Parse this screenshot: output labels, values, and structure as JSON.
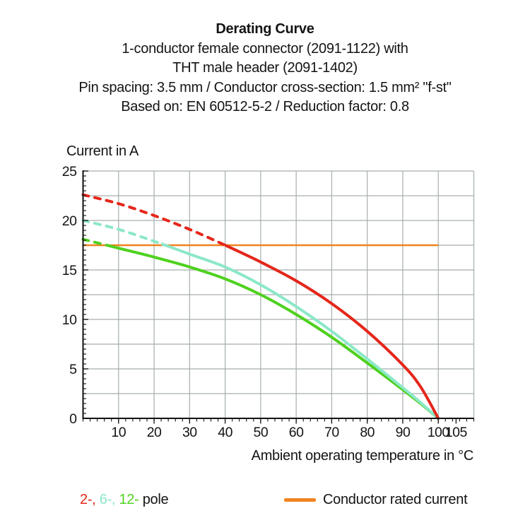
{
  "header": {
    "title": "Derating Curve",
    "lines": [
      "1-conductor female connector (2091-1122) with",
      "THT male header (2091-1402)",
      "Pin spacing: 3.5 mm / Conductor cross-section: 1.5 mm² \"f-st\"",
      "Based on: EN 60512-5-2 / Reduction factor: 0.8"
    ]
  },
  "chart_data": {
    "type": "line",
    "title": "Derating Curve",
    "xlabel": "Ambient operating temperature in °C",
    "ylabel": "Current in A",
    "xlim": [
      0,
      110
    ],
    "ylim": [
      0,
      25
    ],
    "x_major_ticks": [
      10,
      20,
      30,
      40,
      50,
      60,
      70,
      80,
      90,
      100,
      105
    ],
    "x_minor_tick_step": 2,
    "y_major_ticks": [
      0,
      5,
      10,
      15,
      20,
      25
    ],
    "y_minor_tick_step": 0.5,
    "x_gridline_step": 10,
    "y_gridline_step": 2.5,
    "grid": true,
    "grid_color": "#a6aeae",
    "axis_color": "#111111",
    "rated_current_line": {
      "label": "Conductor rated current",
      "value_a": 17.5,
      "x_start_c": 0,
      "x_end_c": 100,
      "color": "#f0831f"
    },
    "series": [
      {
        "name": "2-pole",
        "color": "#e5261a",
        "dashed_until_c": 40,
        "points": [
          [
            0,
            22.6
          ],
          [
            10,
            21.7
          ],
          [
            20,
            20.5
          ],
          [
            30,
            19.1
          ],
          [
            40,
            17.5
          ],
          [
            50,
            15.8
          ],
          [
            60,
            13.9
          ],
          [
            70,
            11.6
          ],
          [
            80,
            8.8
          ],
          [
            90,
            5.4
          ],
          [
            95,
            3.2
          ],
          [
            100,
            0
          ]
        ]
      },
      {
        "name": "6-pole",
        "color": "#8ce8c8",
        "dashed_until_c": 22,
        "points": [
          [
            0,
            20.0
          ],
          [
            10,
            19.1
          ],
          [
            20,
            17.9
          ],
          [
            30,
            16.6
          ],
          [
            40,
            15.3
          ],
          [
            50,
            13.5
          ],
          [
            60,
            11.3
          ],
          [
            70,
            8.8
          ],
          [
            80,
            6.0
          ],
          [
            90,
            3.1
          ],
          [
            95,
            1.6
          ],
          [
            100,
            0
          ]
        ]
      },
      {
        "name": "12-pole",
        "color": "#4fd11f",
        "dashed_until_c": 6.5,
        "points": [
          [
            0,
            18.1
          ],
          [
            10,
            17.2
          ],
          [
            20,
            16.3
          ],
          [
            30,
            15.3
          ],
          [
            40,
            14.1
          ],
          [
            50,
            12.5
          ],
          [
            60,
            10.5
          ],
          [
            70,
            8.2
          ],
          [
            80,
            5.6
          ],
          [
            90,
            2.9
          ],
          [
            95,
            1.5
          ],
          [
            100,
            0
          ]
        ]
      }
    ]
  },
  "legend": {
    "pole_segments": [
      {
        "text": "2-,",
        "series": 0
      },
      {
        "text": "6-,",
        "series": 1
      },
      {
        "text": "12-",
        "series": 2
      }
    ],
    "pole_suffix": "pole",
    "rated_label": "Conductor rated current"
  }
}
